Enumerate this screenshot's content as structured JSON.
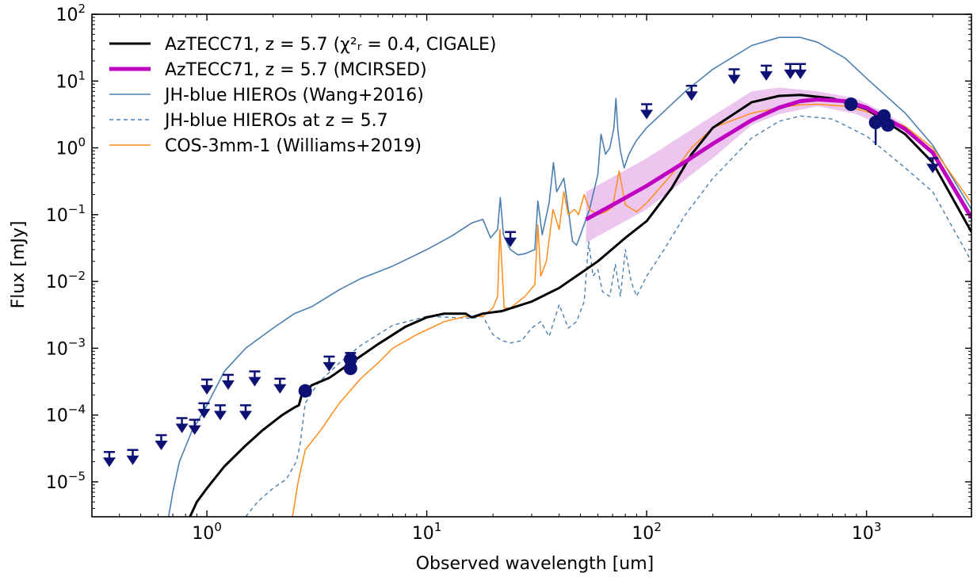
{
  "chart_data": {
    "type": "line",
    "title": "",
    "xlabel": "Observed wavelength [um]",
    "ylabel": "Flux [mJy]",
    "xscale": "log",
    "yscale": "log",
    "xlim": [
      0.3,
      3000
    ],
    "ylim": [
      3e-06,
      100
    ],
    "x_ticks": [
      {
        "base": "10",
        "exp": "0",
        "value": 1
      },
      {
        "base": "10",
        "exp": "1",
        "value": 10
      },
      {
        "base": "10",
        "exp": "2",
        "value": 100
      },
      {
        "base": "10",
        "exp": "3",
        "value": 1000
      }
    ],
    "y_ticks": [
      {
        "base": "10",
        "exp": "−5",
        "value": 1e-05
      },
      {
        "base": "10",
        "exp": "−4",
        "value": 0.0001
      },
      {
        "base": "10",
        "exp": "−3",
        "value": 0.001
      },
      {
        "base": "10",
        "exp": "−2",
        "value": 0.01
      },
      {
        "base": "10",
        "exp": "−1",
        "value": 0.1
      },
      {
        "base": "10",
        "exp": "0",
        "value": 1
      },
      {
        "base": "10",
        "exp": "1",
        "value": 10
      },
      {
        "base": "10",
        "exp": "2",
        "value": 100
      }
    ],
    "legend_position": "top-left",
    "legend": [
      {
        "series": "cigale",
        "text": "AzTECC71, z = 5.7 (χ²ᵣ = 0.4,  CIGALE)"
      },
      {
        "series": "mcirsed",
        "text": "AzTECC71, z = 5.7 (MCIRSED)"
      },
      {
        "series": "hieros",
        "text": "JH-blue HIEROs (Wang+2016)"
      },
      {
        "series": "hieros_z57",
        "text": "JH-blue HIEROs at z = 5.7"
      },
      {
        "series": "cos3mm",
        "text": "COS-3mm-1 (Williams+2019)"
      }
    ],
    "series": [
      {
        "id": "cigale",
        "name": "AzTECC71, z = 5.7 (χ²ᵣ = 0.4,  CIGALE)",
        "color": "#000000",
        "style": "solid",
        "x": [
          0.83,
          0.9,
          1.0,
          1.2,
          1.5,
          1.8,
          2.2,
          2.5,
          2.62,
          2.7,
          3.0,
          3.6,
          4.5,
          6.0,
          8.0,
          10.0,
          12.0,
          15.0,
          16.0,
          18.0,
          22.0,
          30.0,
          40.0,
          60.0,
          80.0,
          100.0,
          130.0,
          160.0,
          200.0,
          300.0,
          400.0,
          500.0,
          700.0,
          1000.0,
          1500.0,
          2000.0,
          3000.0
        ],
        "y": [
          2.8e-06,
          5e-06,
          8e-06,
          1.7e-05,
          3.5e-05,
          6e-05,
          0.0001,
          0.00013,
          0.00014,
          0.0002,
          0.00028,
          0.00036,
          0.0006,
          0.00115,
          0.0021,
          0.0029,
          0.0033,
          0.0033,
          0.0029,
          0.0033,
          0.0036,
          0.005,
          0.008,
          0.02,
          0.045,
          0.08,
          0.25,
          0.8,
          2.0,
          4.8,
          6.0,
          6.2,
          5.5,
          3.8,
          1.6,
          0.6,
          0.055
        ]
      },
      {
        "id": "mcirsed",
        "name": "AzTECC71, z = 5.7 (MCIRSED)",
        "color": "#c000c0",
        "style": "solid",
        "x": [
          53.0,
          70.0,
          100.0,
          150.0,
          200.0,
          300.0,
          400.0,
          500.0,
          600.0,
          800.0,
          1000.0,
          1500.0,
          2000.0,
          3000.0
        ],
        "y": [
          0.085,
          0.14,
          0.27,
          0.62,
          1.15,
          2.6,
          4.0,
          5.0,
          5.3,
          5.0,
          4.0,
          1.9,
          0.85,
          0.09
        ]
      },
      {
        "id": "mcirsed_band",
        "name": "",
        "color": "#e4a8e8",
        "style": "band",
        "x": [
          53.0,
          100.0,
          200.0,
          300.0,
          400.0,
          600.0,
          900.0,
          1200.0,
          1500.0,
          1200.0,
          900.0,
          600.0,
          400.0,
          300.0,
          200.0,
          100.0,
          53.0
        ],
        "y": [
          0.22,
          0.7,
          3.0,
          7.0,
          8.0,
          7.0,
          5.5,
          3.4,
          2.2,
          2.1,
          3.2,
          4.2,
          3.2,
          2.2,
          0.7,
          0.12,
          0.038
        ]
      },
      {
        "id": "hieros",
        "name": "JH-blue HIEROs (Wang+2016)",
        "color": "#4a7fb0",
        "style": "solid",
        "x": [
          0.67,
          0.7,
          0.75,
          0.85,
          1.0,
          1.2,
          1.5,
          2.0,
          2.5,
          3.0,
          4.0,
          5.0,
          7.0,
          10.0,
          13.0,
          16.0,
          18.0,
          19.5,
          21.0,
          21.6,
          22.3,
          24.0,
          26.0,
          28.0,
          31.0,
          32.0,
          33.5,
          36.0,
          37.7,
          39.0,
          42.0,
          44.0,
          46.0,
          48.0,
          50.0,
          55.0,
          60.0,
          62.0,
          65.0,
          68.0,
          71.0,
          72.5,
          74.0,
          76.0,
          79.0,
          83.0,
          90.0,
          100.0,
          150.0,
          200.0,
          300.0,
          400.0,
          500.0,
          600.0,
          800.0,
          1000.0,
          1500.0,
          2000.0,
          3000.0
        ],
        "y": [
          3e-06,
          7e-06,
          2e-05,
          5.5e-05,
          0.00014,
          0.00045,
          0.001,
          0.002,
          0.0033,
          0.0042,
          0.0075,
          0.011,
          0.017,
          0.03,
          0.048,
          0.075,
          0.085,
          0.045,
          0.06,
          0.18,
          0.05,
          0.03,
          0.025,
          0.026,
          0.03,
          0.16,
          0.05,
          0.15,
          0.6,
          0.22,
          0.35,
          0.12,
          0.04,
          0.035,
          0.05,
          0.12,
          0.4,
          1.6,
          0.8,
          1.0,
          2.0,
          5.5,
          1.8,
          0.9,
          0.5,
          0.8,
          1.3,
          2.0,
          7.0,
          15.0,
          34.0,
          45.0,
          45.0,
          38.0,
          22.0,
          11.0,
          3.3,
          1.1,
          0.12
        ]
      },
      {
        "id": "hieros_z57",
        "name": "JH-blue HIEROs at z = 5.7",
        "color": "#4a7fb0",
        "style": "dashed",
        "x": [
          1.5,
          1.7,
          2.0,
          2.3,
          2.55,
          2.65,
          2.8,
          3.2,
          4.0,
          5.0,
          7.0,
          10.0,
          13.0,
          16.0,
          18.0,
          20.0,
          22.0,
          24.0,
          27.0,
          30.0,
          33.0,
          36.0,
          40.0,
          44.0,
          48.0,
          52.0,
          54.5,
          57.0,
          60.0,
          63.0,
          68.0,
          72.0,
          76.0,
          80.0,
          85.0,
          90.0,
          100.0,
          120.0,
          150.0,
          200.0,
          300.0,
          400.0,
          500.0,
          700.0,
          1000.0,
          1500.0,
          2000.0,
          3000.0
        ],
        "y": [
          3e-06,
          5e-06,
          8e-06,
          1.1e-05,
          2e-05,
          3.5e-05,
          0.00015,
          0.0003,
          0.0006,
          0.0011,
          0.0022,
          0.003,
          0.0029,
          0.0028,
          0.003,
          0.0016,
          0.0013,
          0.0012,
          0.0013,
          0.002,
          0.0025,
          0.0015,
          0.0045,
          0.002,
          0.0025,
          0.005,
          0.04,
          0.012,
          0.015,
          0.007,
          0.006,
          0.018,
          0.006,
          0.03,
          0.01,
          0.006,
          0.012,
          0.03,
          0.1,
          0.35,
          1.4,
          2.5,
          3.0,
          2.7,
          1.5,
          0.5,
          0.22,
          0.02
        ]
      },
      {
        "id": "cos3mm",
        "name": "COS-3mm-1 (Williams+2019)",
        "color": "#ff8c1a",
        "style": "solid",
        "x": [
          2.45,
          2.6,
          2.8,
          3.3,
          4.0,
          5.0,
          6.0,
          7.0,
          9.0,
          12.0,
          15.0,
          18.0,
          20.0,
          21.0,
          21.5,
          22.5,
          24.0,
          28.0,
          31.0,
          32.0,
          33.0,
          35.0,
          37.5,
          40.0,
          42.0,
          44.0,
          47.0,
          49.0,
          52.0,
          55.0,
          60.0,
          65.0,
          70.0,
          75.0,
          80.0,
          90.0,
          100.0,
          130.0,
          160.0,
          200.0,
          300.0,
          400.0,
          500.0,
          600.0,
          800.0,
          1000.0,
          1500.0,
          2000.0,
          3000.0
        ],
        "y": [
          3e-06,
          1e-05,
          3e-05,
          6e-05,
          0.00015,
          0.00035,
          0.0006,
          0.001,
          0.0016,
          0.0025,
          0.003,
          0.003,
          0.004,
          0.006,
          0.06,
          0.004,
          0.004,
          0.006,
          0.009,
          0.07,
          0.012,
          0.02,
          0.12,
          0.06,
          0.22,
          0.1,
          0.12,
          0.1,
          0.2,
          0.12,
          0.1,
          0.11,
          0.13,
          0.45,
          0.14,
          0.11,
          0.15,
          0.4,
          1.0,
          2.0,
          3.3,
          4.0,
          4.4,
          4.5,
          4.2,
          3.5,
          2.1,
          1.0,
          0.15
        ]
      }
    ],
    "points": {
      "color": "#0d1173",
      "detections": {
        "x": [
          2.8,
          4.5,
          4.5,
          850.0,
          1100.0,
          1200.0,
          1250.0
        ],
        "y": [
          0.00023,
          0.0005,
          0.00068,
          4.5,
          2.4,
          3.0,
          2.2
        ],
        "yerr_low": [
          0.0,
          0.0,
          0.0,
          0.0,
          1.3,
          0.0,
          0.0
        ],
        "yerr_high": [
          0.0,
          0.0,
          0.0,
          0.0,
          0.0,
          0.0,
          0.0
        ]
      },
      "upper_limits": {
        "x": [
          0.36,
          0.46,
          0.62,
          0.77,
          0.88,
          0.97,
          1.0,
          1.15,
          1.25,
          1.5,
          1.65,
          2.15,
          3.6,
          4.5,
          24.0,
          100.0,
          160.0,
          250.0,
          350.0,
          450.0,
          500.0,
          2000.0
        ],
        "y": [
          2.8e-05,
          3e-05,
          5e-05,
          9e-05,
          8.5e-05,
          0.00015,
          0.00034,
          0.00014,
          0.0004,
          0.00014,
          0.00045,
          0.00035,
          0.00075,
          0.00085,
          0.055,
          4.5,
          8.5,
          15.0,
          17.0,
          18.0,
          18.0,
          0.7
        ]
      }
    }
  }
}
